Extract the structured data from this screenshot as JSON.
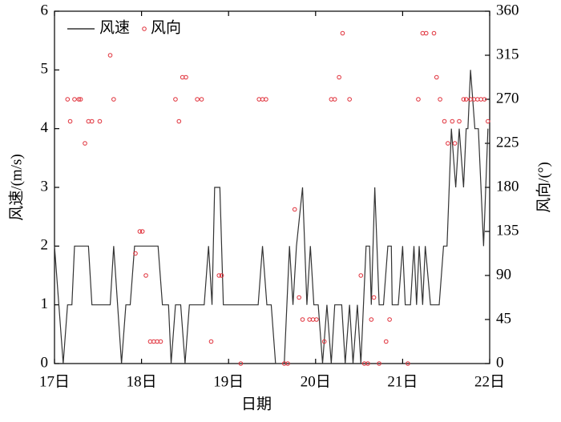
{
  "chart_data": {
    "type": "line",
    "x_label": "日期",
    "y_label": "风速/(m/s)",
    "y2_label": "风向/(°)",
    "xlim": [
      17,
      22
    ],
    "xticks": [
      {
        "value": 17,
        "label": "17日"
      },
      {
        "value": 18,
        "label": "18日"
      },
      {
        "value": 19,
        "label": "19日"
      },
      {
        "value": 20,
        "label": "20日"
      },
      {
        "value": 21,
        "label": "21日"
      },
      {
        "value": 22,
        "label": "22日"
      }
    ],
    "ylim": [
      0,
      6
    ],
    "yticks": [
      0,
      1,
      2,
      3,
      4,
      5,
      6
    ],
    "y2lim": [
      0,
      360
    ],
    "y2ticks": [
      0,
      45,
      90,
      135,
      180,
      225,
      270,
      315,
      360
    ],
    "legend": "upper left",
    "series": [
      {
        "name": "风速",
        "type": "line",
        "color": "#333333",
        "x": [
          17.0,
          17.1,
          17.15,
          17.2,
          17.23,
          17.39,
          17.43,
          17.64,
          17.68,
          17.77,
          17.82,
          17.87,
          17.92,
          18.19,
          18.24,
          18.31,
          18.34,
          18.39,
          18.45,
          18.5,
          18.55,
          18.72,
          18.77,
          18.81,
          18.84,
          18.9,
          18.94,
          19.34,
          19.39,
          19.44,
          19.49,
          19.54,
          19.64,
          19.7,
          19.74,
          19.78,
          19.85,
          19.9,
          19.94,
          19.98,
          20.03,
          20.08,
          20.13,
          20.18,
          20.22,
          20.3,
          20.34,
          20.39,
          20.43,
          20.48,
          20.52,
          20.58,
          20.62,
          20.64,
          20.68,
          20.73,
          20.78,
          20.83,
          20.87,
          20.88,
          20.95,
          21.0,
          21.03,
          21.09,
          21.13,
          21.16,
          21.19,
          21.23,
          21.26,
          21.32,
          21.42,
          21.47,
          21.51,
          21.56,
          21.61,
          21.65,
          21.7,
          21.73,
          21.75,
          21.78,
          21.83,
          21.87,
          21.93,
          21.98
        ],
        "values": [
          2,
          0,
          1,
          1,
          2,
          2,
          1,
          1,
          2,
          0,
          1,
          1,
          2,
          2,
          1,
          1,
          0,
          1,
          1,
          0,
          1,
          1,
          2,
          1,
          3,
          3,
          1,
          1,
          2,
          1,
          1,
          0,
          0,
          2,
          1,
          2,
          3,
          1,
          2,
          1,
          1,
          0,
          1,
          0,
          1,
          1,
          0,
          1,
          0,
          1,
          0,
          2,
          2,
          1,
          3,
          1,
          1,
          2,
          2,
          1,
          1,
          2,
          1,
          1,
          2,
          1,
          2,
          1,
          2,
          1,
          1,
          2,
          2,
          4,
          3,
          4,
          3,
          4,
          4,
          5,
          4,
          4,
          2,
          4
        ]
      },
      {
        "name": "风向",
        "type": "scatter",
        "axis": "y2",
        "color": "#e0303a",
        "x": [
          17.15,
          17.18,
          17.23,
          17.28,
          17.3,
          17.35,
          17.39,
          17.43,
          17.52,
          17.64,
          17.68,
          17.93,
          17.98,
          18.01,
          18.05,
          18.1,
          18.14,
          18.18,
          18.22,
          18.39,
          18.43,
          18.47,
          18.51,
          18.64,
          18.69,
          18.8,
          18.89,
          18.92,
          19.14,
          19.35,
          19.39,
          19.43,
          19.64,
          19.68,
          19.76,
          19.81,
          19.85,
          19.93,
          19.97,
          20.01,
          20.1,
          20.18,
          20.22,
          20.27,
          20.31,
          20.39,
          20.52,
          20.56,
          20.6,
          20.64,
          20.67,
          20.73,
          20.81,
          20.85,
          21.06,
          21.18,
          21.23,
          21.27,
          21.36,
          21.39,
          21.43,
          21.48,
          21.52,
          21.57,
          21.6,
          21.65,
          21.7,
          21.73,
          21.78,
          21.82,
          21.86,
          21.9,
          21.94,
          21.98
        ],
        "values": [
          270,
          247.5,
          270,
          270,
          270,
          225,
          247.5,
          247.5,
          247.5,
          315,
          270,
          112.5,
          135,
          135,
          90,
          22.5,
          22.5,
          22.5,
          22.5,
          270,
          247.5,
          292.5,
          292.5,
          270,
          270,
          22.5,
          90,
          90,
          0,
          270,
          270,
          270,
          0,
          0,
          157.5,
          67.5,
          45,
          45,
          45,
          45,
          22.5,
          270,
          270,
          292.5,
          337.5,
          270,
          90,
          0,
          0,
          45,
          67.5,
          0,
          22.5,
          45,
          0,
          270,
          337.5,
          337.5,
          337.5,
          292.5,
          270,
          247.5,
          225,
          247.5,
          225,
          247.5,
          270,
          270,
          270,
          270,
          270,
          270,
          270,
          247.5
        ]
      }
    ]
  }
}
